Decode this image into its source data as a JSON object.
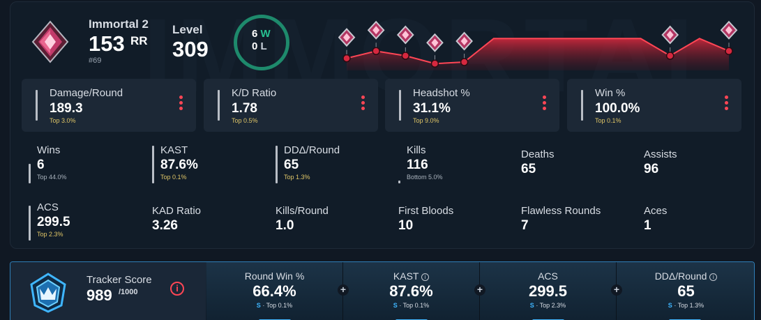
{
  "header": {
    "rank_name": "Immortal 2",
    "rr_value": "153",
    "rr_label": "RR",
    "rank_position": "#69",
    "level_label": "Level",
    "level_value": "309",
    "wins_count": "6",
    "wins_letter": "W",
    "losses_count": "0",
    "losses_letter": "L",
    "watermark": "IMMORTAL"
  },
  "rr_history": [
    0.32,
    0.55,
    0.4,
    0.15,
    0.2,
    0.95,
    0.95,
    0.95,
    0.95,
    0.95,
    0.95,
    0.4,
    0.95,
    0.55
  ],
  "highlight_cards": [
    {
      "label": "Damage/Round",
      "value": "189.3",
      "percentile": "Top 3.0%"
    },
    {
      "label": "K/D Ratio",
      "value": "1.78",
      "percentile": "Top 0.5%"
    },
    {
      "label": "Headshot %",
      "value": "31.1%",
      "percentile": "Top 9.0%"
    },
    {
      "label": "Win %",
      "value": "100.0%",
      "percentile": "Top 0.1%"
    }
  ],
  "stats_row1": [
    {
      "label": "Wins",
      "value": "6",
      "percentile": "Top 44.0%"
    },
    {
      "label": "KAST",
      "value": "87.6%",
      "percentile": "Top 0.1%"
    },
    {
      "label": "DDΔ/Round",
      "value": "65",
      "percentile": "Top 1.3%"
    },
    {
      "label": "Kills",
      "value": "116",
      "percentile": "Bottom 5.0%"
    },
    {
      "label": "Deaths",
      "value": "65"
    },
    {
      "label": "Assists",
      "value": "96"
    }
  ],
  "stats_row2": [
    {
      "label": "ACS",
      "value": "299.5",
      "percentile": "Top 2.3%"
    },
    {
      "label": "KAD Ratio",
      "value": "3.26"
    },
    {
      "label": "Kills/Round",
      "value": "1.0"
    },
    {
      "label": "First Bloods",
      "value": "10"
    },
    {
      "label": "Flawless Rounds",
      "value": "7"
    },
    {
      "label": "Aces",
      "value": "1"
    }
  ],
  "tracker": {
    "label": "Tracker Score",
    "value": "989",
    "max": "/1000",
    "info_glyph": "i",
    "columns": [
      {
        "label": "Round Win %",
        "value": "66.4%",
        "grade": "S",
        "percentile": "· Top 0.1%",
        "has_info": false
      },
      {
        "label": "KAST",
        "value": "87.6%",
        "grade": "S",
        "percentile": "· Top 0.1%",
        "has_info": true
      },
      {
        "label": "ACS",
        "value": "299.5",
        "grade": "S",
        "percentile": "· Top 2.3%",
        "has_info": false
      },
      {
        "label": "DDΔ/Round",
        "value": "65",
        "grade": "S",
        "percentile": "· Top 1.3%",
        "has_info": true
      }
    ],
    "plus_glyph": "+"
  },
  "colors": {
    "accent_red": "#ff4655",
    "win_green": "#27c191",
    "percentile_gold": "#e0c667",
    "tracker_blue": "#3fb6ff"
  }
}
